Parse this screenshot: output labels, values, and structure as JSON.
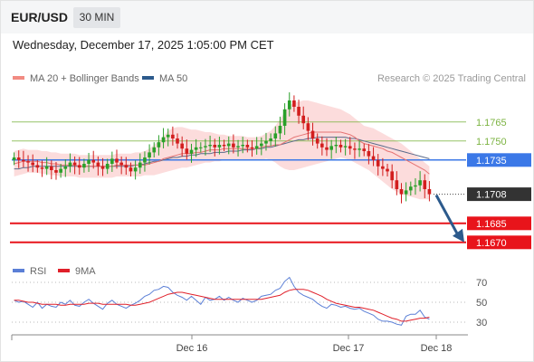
{
  "header": {
    "symbol": "EUR/USD",
    "timeframe": "30 MIN",
    "datetime": "Wednesday, December 17, 2025 1:05:00 PM CET"
  },
  "legend": {
    "ma20_bb": {
      "label": "MA 20 + Bollinger Bands",
      "color": "#f28b82"
    },
    "ma50": {
      "label": "MA 50",
      "color": "#2c5a8c"
    },
    "credit": "Research © 2025 Trading Central"
  },
  "rsi_legend": {
    "rsi": {
      "label": "RSI",
      "color": "#5b7fd6"
    },
    "ma9": {
      "label": "9MA",
      "color": "#e0202a"
    }
  },
  "colors": {
    "bull": "#2aa02a",
    "bear": "#d21e1e",
    "pivot_blue": "#3b78e7",
    "support_red": "#e8141b",
    "resistance_green": "#7cb342",
    "current_price_bg": "#333333",
    "forecast_arrow": "#2c5a8c",
    "bollinger_fill": "#fbd0d0"
  },
  "chart_data": [
    {
      "type": "candlestick",
      "title": "EUR/USD 30 MIN",
      "x_ticks": [
        "Dec 16",
        "Dec 17",
        "Dec 18"
      ],
      "ylim": [
        1.1662,
        1.1792
      ],
      "levels": [
        {
          "label": "1.1765",
          "value": 1.1765,
          "role": "resistance",
          "color": "#7cb342"
        },
        {
          "label": "1.1750",
          "value": 1.175,
          "role": "resistance",
          "color": "#7cb342"
        },
        {
          "label": "1.1735",
          "value": 1.1735,
          "role": "pivot",
          "color": "#3b78e7"
        },
        {
          "label": "1.1708",
          "value": 1.1708,
          "role": "current",
          "color": "#333333"
        },
        {
          "label": "1.1685",
          "value": 1.1685,
          "role": "support",
          "color": "#e8141b"
        },
        {
          "label": "1.1670",
          "value": 1.167,
          "role": "support",
          "color": "#e8141b"
        }
      ],
      "forecast": {
        "from": 1.1708,
        "to": 1.167,
        "direction": "down"
      },
      "close_series": [
        1.1737,
        1.1735,
        1.1734,
        1.1733,
        1.1731,
        1.1729,
        1.1728,
        1.173,
        1.1727,
        1.1725,
        1.1728,
        1.173,
        1.1733,
        1.1731,
        1.1729,
        1.1732,
        1.1735,
        1.1733,
        1.173,
        1.1728,
        1.1732,
        1.1736,
        1.1733,
        1.1731,
        1.1729,
        1.1726,
        1.1729,
        1.1733,
        1.1737,
        1.1741,
        1.1745,
        1.1749,
        1.1753,
        1.1755,
        1.1752,
        1.1748,
        1.1744,
        1.174,
        1.1743,
        1.1745,
        1.1745,
        1.1746,
        1.1747,
        1.1745,
        1.1747,
        1.1746,
        1.1748,
        1.1745,
        1.1746,
        1.1747,
        1.1745,
        1.1744,
        1.1746,
        1.1748,
        1.175,
        1.1752,
        1.1756,
        1.1762,
        1.1775,
        1.1782,
        1.1777,
        1.177,
        1.1764,
        1.1758,
        1.1752,
        1.1748,
        1.1745,
        1.1743,
        1.1746,
        1.1747,
        1.1745,
        1.1746,
        1.1744,
        1.1743,
        1.1744,
        1.1742,
        1.1738,
        1.1735,
        1.173,
        1.1728,
        1.1726,
        1.1719,
        1.1712,
        1.1708,
        1.1711,
        1.1714,
        1.1715,
        1.1719,
        1.1712,
        1.1708
      ],
      "ma20_series": [
        1.1732,
        1.1733,
        1.1734,
        1.1734,
        1.1734,
        1.1734,
        1.1733,
        1.1733,
        1.1732,
        1.1732,
        1.1731,
        1.1731,
        1.1731,
        1.1731,
        1.173,
        1.173,
        1.173,
        1.173,
        1.173,
        1.173,
        1.173,
        1.173,
        1.1731,
        1.1731,
        1.1731,
        1.1731,
        1.1731,
        1.1731,
        1.1731,
        1.1732,
        1.1733,
        1.1734,
        1.1736,
        1.1737,
        1.1738,
        1.1739,
        1.174,
        1.174,
        1.174,
        1.1741,
        1.1741,
        1.1742,
        1.1743,
        1.1743,
        1.1743,
        1.1744,
        1.1744,
        1.1744,
        1.1744,
        1.1744,
        1.1744,
        1.1744,
        1.1744,
        1.1745,
        1.1746,
        1.1746,
        1.1747,
        1.1747,
        1.1749,
        1.1751,
        1.1753,
        1.1754,
        1.1755,
        1.1756,
        1.1757,
        1.1757,
        1.1757,
        1.1757,
        1.1757,
        1.1757,
        1.1757,
        1.1756,
        1.1755,
        1.1753,
        1.175,
        1.1748,
        1.1747,
        1.1746,
        1.1745,
        1.1744,
        1.1742,
        1.1741,
        1.1739,
        1.1737,
        1.1735,
        1.1733,
        1.1731,
        1.1729,
        1.1727,
        1.1724
      ],
      "bb_upper_series": [
        1.1742,
        1.1743,
        1.1744,
        1.1743,
        1.1743,
        1.1743,
        1.1742,
        1.1742,
        1.1741,
        1.1741,
        1.174,
        1.174,
        1.174,
        1.174,
        1.1739,
        1.1739,
        1.1739,
        1.1739,
        1.1739,
        1.1739,
        1.1739,
        1.1739,
        1.174,
        1.174,
        1.174,
        1.174,
        1.1741,
        1.1741,
        1.1742,
        1.1744,
        1.1747,
        1.175,
        1.1754,
        1.1758,
        1.176,
        1.1761,
        1.1761,
        1.176,
        1.1759,
        1.1759,
        1.1758,
        1.1757,
        1.1757,
        1.1756,
        1.1755,
        1.1755,
        1.1754,
        1.1754,
        1.1754,
        1.1754,
        1.1753,
        1.1753,
        1.1753,
        1.1754,
        1.1756,
        1.1758,
        1.1762,
        1.1767,
        1.1773,
        1.1778,
        1.178,
        1.1781,
        1.1782,
        1.1782,
        1.1781,
        1.178,
        1.1779,
        1.1778,
        1.1777,
        1.1776,
        1.1775,
        1.1773,
        1.1771,
        1.1768,
        1.1765,
        1.1762,
        1.1761,
        1.176,
        1.1758,
        1.1756,
        1.1754,
        1.1752,
        1.175,
        1.1748,
        1.1745,
        1.1742,
        1.1739,
        1.1736,
        1.1733,
        1.173
      ],
      "bb_lower_series": [
        1.1722,
        1.1723,
        1.1724,
        1.1725,
        1.1725,
        1.1725,
        1.1724,
        1.1724,
        1.1723,
        1.1723,
        1.1722,
        1.1722,
        1.1722,
        1.1722,
        1.1721,
        1.1721,
        1.1721,
        1.1721,
        1.1721,
        1.1721,
        1.1721,
        1.1721,
        1.1722,
        1.1722,
        1.1722,
        1.1722,
        1.1722,
        1.1722,
        1.1723,
        1.1723,
        1.1723,
        1.1724,
        1.1725,
        1.1726,
        1.1727,
        1.1728,
        1.1729,
        1.1729,
        1.173,
        1.1731,
        1.1732,
        1.1733,
        1.1733,
        1.1734,
        1.1734,
        1.1735,
        1.1735,
        1.1735,
        1.1735,
        1.1735,
        1.1735,
        1.1735,
        1.1735,
        1.1735,
        1.1736,
        1.1735,
        1.1733,
        1.173,
        1.1728,
        1.1727,
        1.1727,
        1.1728,
        1.1729,
        1.173,
        1.1731,
        1.1732,
        1.1733,
        1.1734,
        1.1735,
        1.1736,
        1.1737,
        1.1736,
        1.1735,
        1.1733,
        1.1731,
        1.1729,
        1.1727,
        1.1724,
        1.1721,
        1.1718,
        1.1715,
        1.1712,
        1.171,
        1.1708,
        1.1707,
        1.1706,
        1.1705,
        1.1704,
        1.1704,
        1.1704
      ],
      "ma50_series": [
        1.1728,
        1.1728,
        1.1729,
        1.1729,
        1.173,
        1.173,
        1.173,
        1.173,
        1.173,
        1.173,
        1.173,
        1.173,
        1.173,
        1.173,
        1.173,
        1.173,
        1.173,
        1.173,
        1.173,
        1.173,
        1.173,
        1.173,
        1.173,
        1.173,
        1.173,
        1.173,
        1.1731,
        1.1731,
        1.1732,
        1.1733,
        1.1734,
        1.1734,
        1.1735,
        1.1736,
        1.1737,
        1.1737,
        1.1738,
        1.1738,
        1.1739,
        1.1739,
        1.174,
        1.174,
        1.174,
        1.1741,
        1.1741,
        1.1741,
        1.1742,
        1.1742,
        1.1742,
        1.1743,
        1.1743,
        1.1743,
        1.1744,
        1.1744,
        1.1745,
        1.1745,
        1.1746,
        1.1747,
        1.1748,
        1.1749,
        1.175,
        1.1751,
        1.1751,
        1.1752,
        1.1752,
        1.1753,
        1.1753,
        1.1753,
        1.1753,
        1.1753,
        1.1753,
        1.1753,
        1.1752,
        1.1752,
        1.1751,
        1.175,
        1.1749,
        1.1748,
        1.1747,
        1.1746,
        1.1745,
        1.1744,
        1.1743,
        1.1742,
        1.1741,
        1.174,
        1.1739,
        1.1738,
        1.1737,
        1.1736
      ]
    },
    {
      "type": "line",
      "title": "RSI",
      "x_ticks": [
        "Dec 16",
        "Dec 17",
        "Dec 18"
      ],
      "y_ticks": [
        70,
        50,
        30
      ],
      "ylim": [
        20,
        80
      ],
      "series": [
        {
          "name": "RSI",
          "color": "#5b7fd6",
          "values": [
            52,
            50,
            51,
            48,
            45,
            50,
            44,
            48,
            46,
            45,
            50,
            48,
            52,
            47,
            46,
            50,
            53,
            49,
            46,
            43,
            49,
            52,
            48,
            46,
            44,
            47,
            49,
            52,
            56,
            58,
            62,
            63,
            66,
            65,
            60,
            57,
            55,
            52,
            56,
            52,
            48,
            55,
            52,
            53,
            56,
            52,
            55,
            52,
            50,
            54,
            52,
            50,
            52,
            56,
            57,
            58,
            62,
            64,
            71,
            75,
            66,
            60,
            57,
            55,
            53,
            49,
            46,
            44,
            48,
            47,
            45,
            46,
            44,
            43,
            44,
            41,
            39,
            37,
            33,
            31,
            31,
            30,
            28,
            27,
            36,
            38,
            38,
            42,
            35,
            33
          ]
        },
        {
          "name": "9MA",
          "color": "#e0202a",
          "values": [
            52,
            52,
            51,
            50,
            50,
            49,
            48,
            48,
            48,
            48,
            47,
            47,
            48,
            48,
            48,
            48,
            49,
            49,
            49,
            48,
            48,
            48,
            48,
            48,
            48,
            47,
            47,
            48,
            49,
            50,
            52,
            54,
            56,
            58,
            59,
            60,
            60,
            59,
            58,
            57,
            56,
            55,
            54,
            53,
            53,
            53,
            53,
            53,
            53,
            53,
            53,
            53,
            53,
            53,
            54,
            55,
            56,
            57,
            60,
            62,
            63,
            63,
            63,
            62,
            60,
            58,
            56,
            53,
            51,
            49,
            48,
            47,
            46,
            45,
            45,
            44,
            43,
            42,
            40,
            38,
            36,
            34,
            33,
            31,
            31,
            32,
            33,
            34,
            34,
            35
          ]
        }
      ]
    }
  ]
}
